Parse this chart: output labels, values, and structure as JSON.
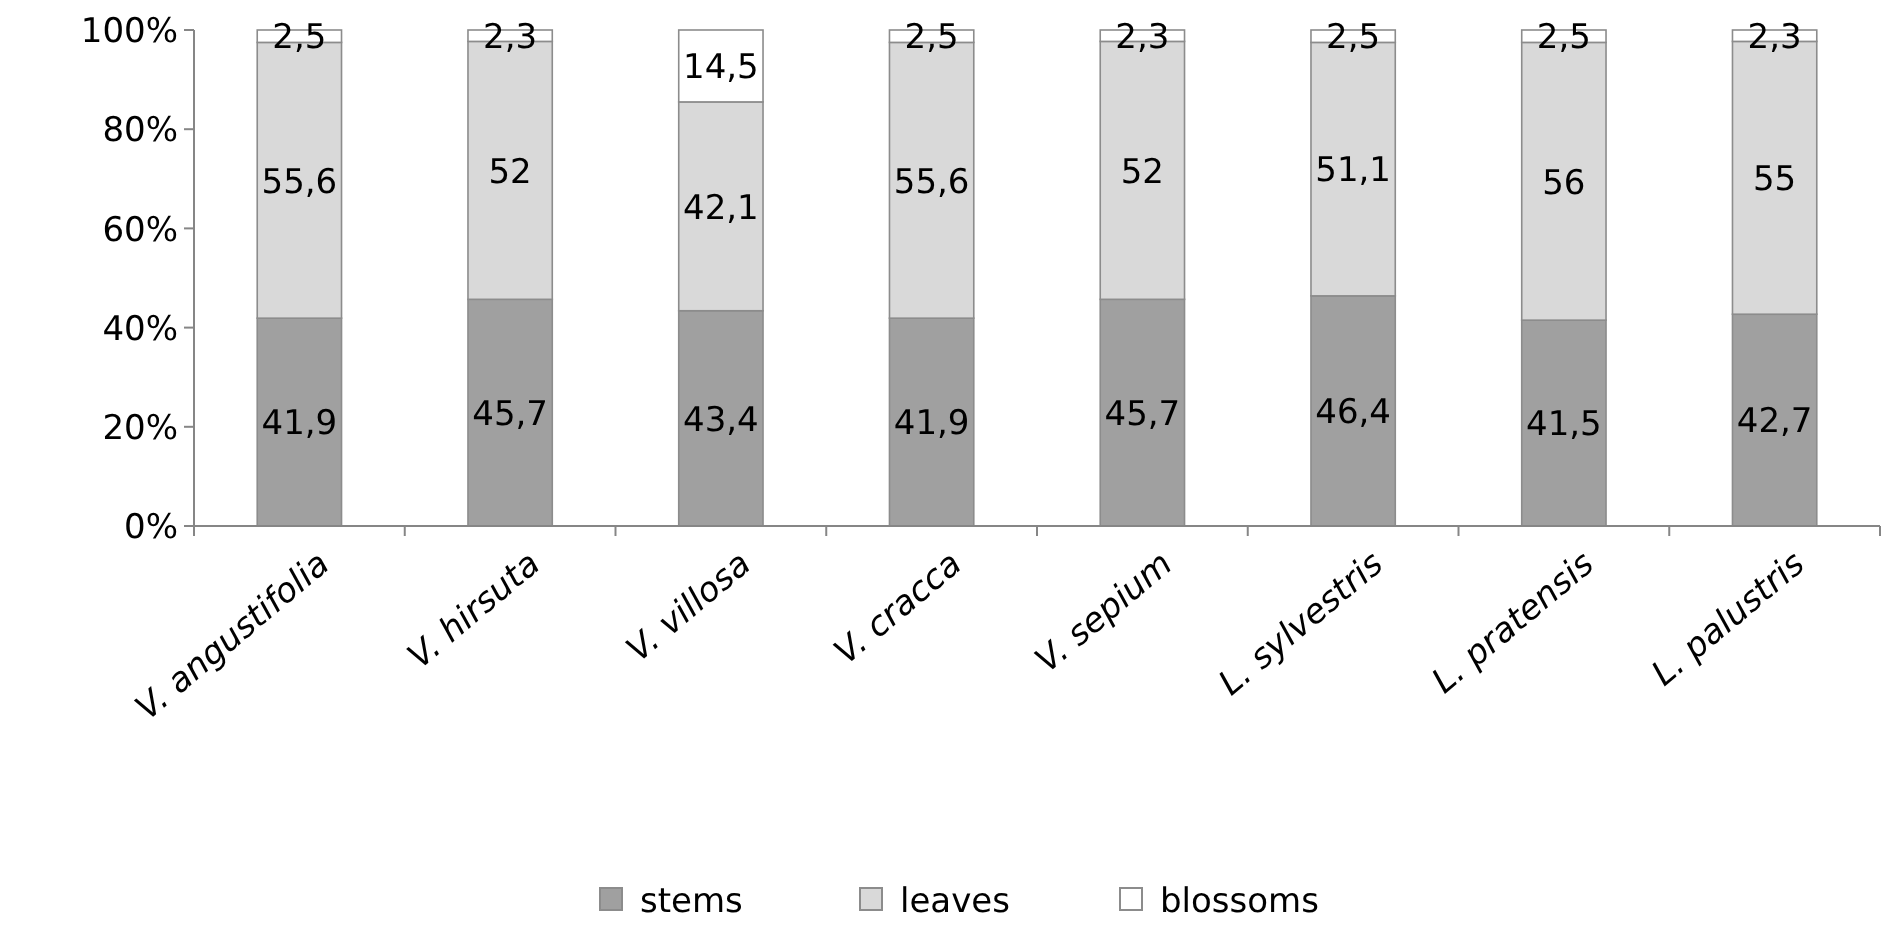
{
  "chart_data": {
    "type": "bar",
    "stacked": true,
    "categories": [
      "V. angustifolia",
      "V. hirsuta",
      "V. villosa",
      "V. cracca",
      "V. sepium",
      "L. sylvestris",
      "L. pratensis",
      "L. palustris"
    ],
    "series": [
      {
        "name": "stems",
        "color": "#a0a0a0",
        "values": [
          41.9,
          45.7,
          43.4,
          41.9,
          45.7,
          46.4,
          41.5,
          42.7
        ],
        "value_labels": [
          "41,9",
          "45,7",
          "43,4",
          "41,9",
          "45,7",
          "46,4",
          "41,5",
          "42,7"
        ]
      },
      {
        "name": "leaves",
        "color": "#d9d9d9",
        "values": [
          55.6,
          52,
          42.1,
          55.6,
          52,
          51.1,
          56,
          55
        ],
        "value_labels": [
          "55,6",
          "52",
          "42,1",
          "55,6",
          "52",
          "51,1",
          "56",
          "55"
        ]
      },
      {
        "name": "blossoms",
        "color": "#ffffff",
        "values": [
          2.5,
          2.3,
          14.5,
          2.5,
          2.3,
          2.5,
          2.5,
          2.3
        ],
        "value_labels": [
          "2,5",
          "2,3",
          "14,5",
          "2,5",
          "2,3",
          "2,5",
          "2,5",
          "2,3"
        ]
      }
    ],
    "ylim": [
      0,
      100
    ],
    "yticks": [
      {
        "value": 0,
        "label": "0%"
      },
      {
        "value": 20,
        "label": "20%"
      },
      {
        "value": 40,
        "label": "40%"
      },
      {
        "value": 60,
        "label": "60%"
      },
      {
        "value": 80,
        "label": "80%"
      },
      {
        "value": 100,
        "label": "100%"
      }
    ],
    "legend": "bottom"
  }
}
